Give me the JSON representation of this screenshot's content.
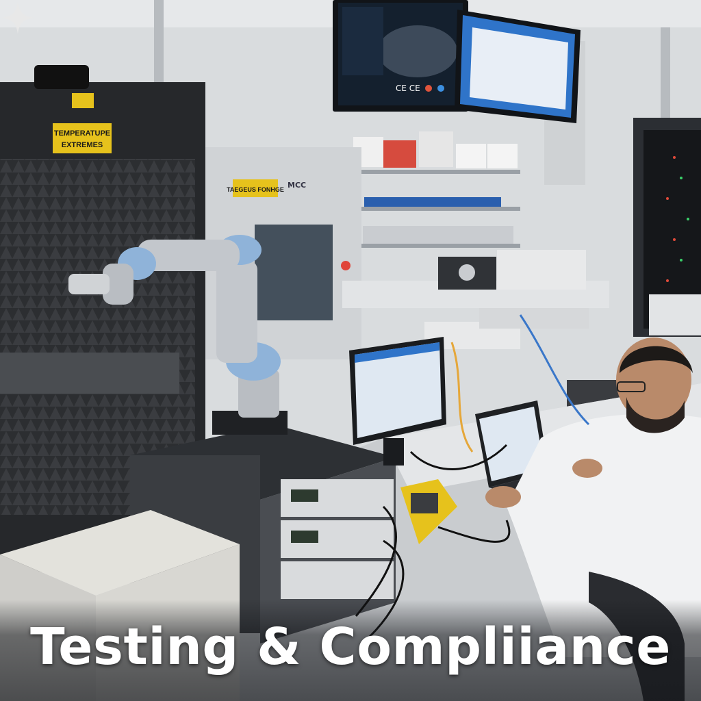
{
  "photo": {
    "caption": "Testing & Compliiance",
    "chamber_sign": "TEMPERATUPE EXTREMES",
    "machine_sign": "TAEGEUS FONHGE",
    "machine_brand": "MCC",
    "monitor_badges": "CE CE"
  },
  "colors": {
    "caption_text": "#ffffff",
    "sign_yellow": "#e6c21c",
    "robot_blue": "#8fb3d9"
  }
}
